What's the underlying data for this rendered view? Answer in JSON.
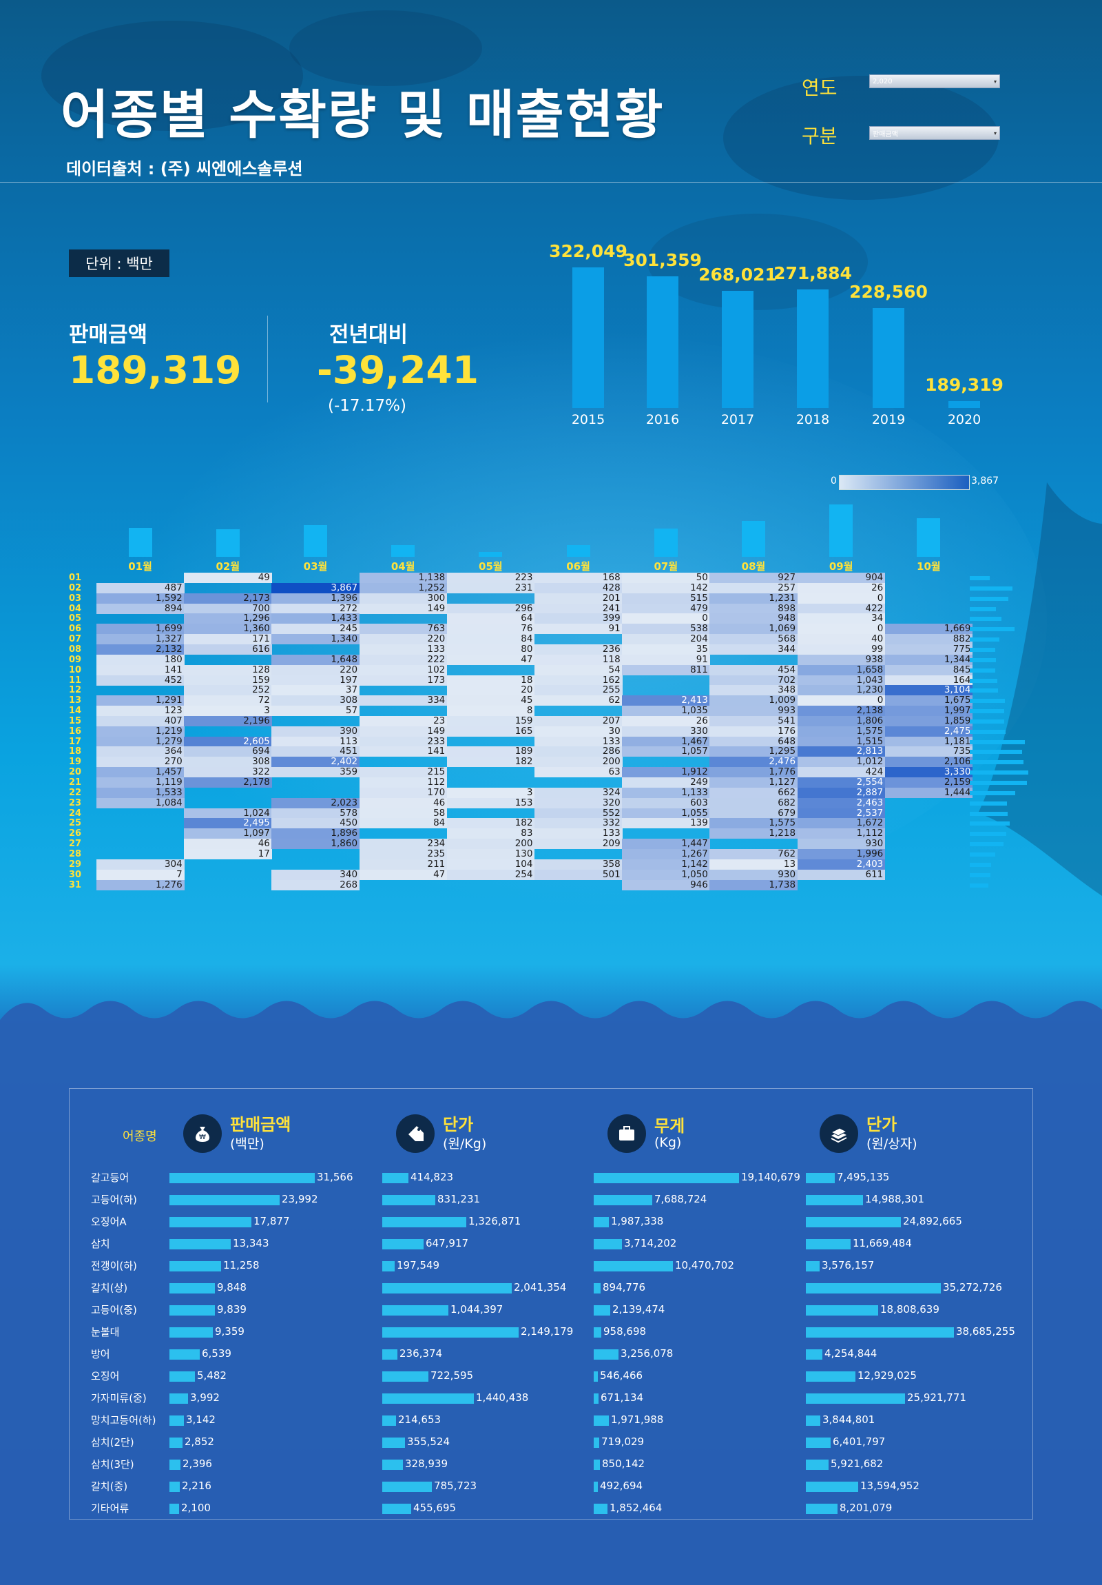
{
  "header": {
    "title": "어종별 수확량 및 매출현황",
    "source": "데이터출처 : (주) 씨엔에스솔루션"
  },
  "filters": [
    {
      "label": "연도",
      "value": "2,020"
    },
    {
      "label": "구분",
      "value": "판매금액"
    }
  ],
  "unit": "단위 : 백만",
  "kpi": {
    "sales_label": "판매금액",
    "sales_value": "189,319",
    "yoy_label": "전년대비",
    "yoy_value": "-39,241",
    "yoy_pct": "(-17.17%)"
  },
  "colors": {
    "accent": "#ffe23a",
    "bar": "#0b9ee6",
    "heat_low": "#e1eaf5",
    "heat_high": "#0f4fc4"
  },
  "chart_data": [
    {
      "type": "bar",
      "categories": [
        "2015",
        "2016",
        "2017",
        "2018",
        "2019",
        "2020"
      ],
      "values": [
        322049,
        301359,
        268021,
        271884,
        228560,
        189319
      ],
      "value_labels": [
        "322,049",
        "301,359",
        "268,021",
        "271,884",
        "228,560",
        "189,319"
      ]
    },
    {
      "type": "heatmap",
      "scale": {
        "min_label": "0",
        "max_label": "3,867",
        "min": 0,
        "max": 3867
      },
      "months": [
        "01월",
        "02월",
        "03월",
        "04월",
        "05월",
        "06월",
        "07월",
        "08월",
        "09월",
        "10월"
      ],
      "month_bar_values": [
        1260,
        1200,
        1400,
        500,
        220,
        500,
        1240,
        1580,
        2300,
        1700
      ],
      "days": [
        "01",
        "02",
        "03",
        "04",
        "05",
        "06",
        "07",
        "08",
        "09",
        "10",
        "11",
        "12",
        "13",
        "14",
        "15",
        "16",
        "17",
        "18",
        "19",
        "20",
        "21",
        "22",
        "23",
        "24",
        "25",
        "26",
        "27",
        "28",
        "29",
        "30",
        "31"
      ],
      "day_bar_values": [
        6300,
        13500,
        12300,
        8300,
        10000,
        14200,
        9400,
        8000,
        8400,
        8000,
        8800,
        9000,
        11100,
        10900,
        11000,
        11400,
        17600,
        16700,
        17000,
        18600,
        18200,
        14400,
        11900,
        12100,
        12700,
        11500,
        10800,
        8200,
        6700,
        6600,
        5800
      ],
      "values": [
        [
          null,
          49,
          null,
          1138,
          223,
          168,
          50,
          927,
          904,
          null
        ],
        [
          487,
          null,
          3867,
          1252,
          231,
          428,
          142,
          257,
          26,
          null
        ],
        [
          1592,
          2173,
          1396,
          300,
          null,
          201,
          515,
          1231,
          0,
          null
        ],
        [
          894,
          700,
          272,
          149,
          296,
          241,
          479,
          898,
          422,
          null
        ],
        [
          null,
          1296,
          1433,
          null,
          64,
          399,
          0,
          948,
          34,
          null
        ],
        [
          1699,
          1360,
          245,
          763,
          76,
          91,
          538,
          1069,
          0,
          1669
        ],
        [
          1327,
          171,
          1340,
          220,
          84,
          null,
          204,
          568,
          40,
          882
        ],
        [
          2132,
          616,
          null,
          133,
          80,
          236,
          35,
          344,
          99,
          775
        ],
        [
          180,
          null,
          1648,
          222,
          47,
          118,
          91,
          null,
          938,
          1344
        ],
        [
          141,
          128,
          220,
          102,
          null,
          54,
          811,
          454,
          1658,
          845
        ],
        [
          452,
          159,
          197,
          173,
          18,
          162,
          null,
          702,
          1043,
          164
        ],
        [
          null,
          252,
          37,
          null,
          20,
          255,
          null,
          348,
          1230,
          3104
        ],
        [
          1291,
          72,
          308,
          334,
          45,
          62,
          2413,
          1009,
          0,
          1675
        ],
        [
          123,
          3,
          57,
          null,
          8,
          null,
          1035,
          993,
          2138,
          1997
        ],
        [
          407,
          2196,
          null,
          23,
          159,
          207,
          26,
          541,
          1806,
          1859
        ],
        [
          1219,
          null,
          390,
          149,
          165,
          30,
          330,
          176,
          1575,
          2475
        ],
        [
          1279,
          2605,
          113,
          233,
          null,
          133,
          1467,
          648,
          1515,
          1181
        ],
        [
          364,
          694,
          451,
          141,
          189,
          286,
          1057,
          1295,
          2813,
          735
        ],
        [
          270,
          308,
          2402,
          null,
          182,
          200,
          null,
          2476,
          1012,
          2106
        ],
        [
          1457,
          322,
          359,
          215,
          null,
          63,
          1912,
          1776,
          424,
          3330
        ],
        [
          1119,
          2178,
          null,
          112,
          null,
          null,
          249,
          1127,
          2554,
          2159
        ],
        [
          1533,
          null,
          null,
          170,
          3,
          324,
          1133,
          662,
          2887,
          1444
        ],
        [
          1084,
          null,
          2023,
          46,
          153,
          320,
          603,
          682,
          2463,
          null
        ],
        [
          null,
          1024,
          578,
          58,
          null,
          552,
          1055,
          679,
          2537,
          null
        ],
        [
          null,
          2495,
          450,
          84,
          182,
          332,
          139,
          1575,
          1672,
          null
        ],
        [
          null,
          1097,
          1896,
          null,
          83,
          133,
          null,
          1218,
          1112,
          null
        ],
        [
          null,
          46,
          1860,
          234,
          200,
          209,
          1447,
          null,
          930,
          null
        ],
        [
          null,
          17,
          null,
          235,
          130,
          null,
          1267,
          762,
          1996,
          null
        ],
        [
          304,
          null,
          null,
          211,
          104,
          358,
          1142,
          13,
          2403,
          null
        ],
        [
          7,
          null,
          340,
          47,
          254,
          501,
          1050,
          930,
          611,
          null
        ],
        [
          1276,
          null,
          268,
          null,
          null,
          null,
          946,
          1738,
          null,
          null
        ]
      ]
    },
    {
      "type": "bar",
      "orientation": "horizontal",
      "label_header": "어종명",
      "categories": [
        "갈고등어",
        "고등어(하)",
        "오징어A",
        "삼치",
        "전갱이(하)",
        "갈치(상)",
        "고등어(중)",
        "눈볼대",
        "방어",
        "오징어",
        "가자미류(중)",
        "망치고등어(하)",
        "삼치(2단)",
        "삼치(3단)",
        "갈치(중)",
        "기타어류"
      ],
      "series": [
        {
          "name": "판매금액",
          "unit": "(백만)",
          "icon": "money-bag-icon",
          "values": [
            31566,
            23992,
            17877,
            13343,
            11258,
            9848,
            9839,
            9359,
            6539,
            5482,
            3992,
            3142,
            2852,
            2396,
            2216,
            2100
          ],
          "labels": [
            "31,566",
            "23,992",
            "17,877",
            "13,343",
            "11,258",
            "9,848",
            "9,839",
            "9,359",
            "6,539",
            "5,482",
            "3,992",
            "3,142",
            "2,852",
            "2,396",
            "2,216",
            "2,100"
          ]
        },
        {
          "name": "단가",
          "unit": "(원/Kg)",
          "icon": "price-tag-icon",
          "values": [
            414823,
            831231,
            1326871,
            647917,
            197549,
            2041354,
            1044397,
            2149179,
            236374,
            722595,
            1440438,
            214653,
            355524,
            328939,
            785723,
            455695
          ],
          "labels": [
            "414,823",
            "831,231",
            "1,326,871",
            "647,917",
            "197,549",
            "2,041,354",
            "1,044,397",
            "2,149,179",
            "236,374",
            "722,595",
            "1,440,438",
            "214,653",
            "355,524",
            "328,939",
            "785,723",
            "455,695"
          ]
        },
        {
          "name": "무게",
          "unit": "(Kg)",
          "icon": "briefcase-icon",
          "values": [
            19140679,
            7688724,
            1987338,
            3714202,
            10470702,
            894776,
            2139474,
            958698,
            3256078,
            546466,
            671134,
            1971988,
            719029,
            850142,
            492694,
            1852464
          ],
          "labels": [
            "19,140,679",
            "7,688,724",
            "1,987,338",
            "3,714,202",
            "10,470,702",
            "894,776",
            "2,139,474",
            "958,698",
            "3,256,078",
            "546,466",
            "671,134",
            "1,971,988",
            "719,029",
            "850,142",
            "492,694",
            "1,852,464"
          ]
        },
        {
          "name": "단가",
          "unit": "(원/상자)",
          "icon": "box-stack-icon",
          "values": [
            7495135,
            14988301,
            24892665,
            11669484,
            3576157,
            35272726,
            18808639,
            38685255,
            4254844,
            12929025,
            25921771,
            3844801,
            6401797,
            5921682,
            13594952,
            8201079
          ],
          "labels": [
            "7,495,135",
            "14,988,301",
            "24,892,665",
            "11,669,484",
            "3,576,157",
            "35,272,726",
            "18,808,639",
            "38,685,255",
            "4,254,844",
            "12,929,025",
            "25,921,771",
            "3,844,801",
            "6,401,797",
            "5,921,682",
            "13,594,952",
            "8,201,079"
          ]
        }
      ]
    }
  ]
}
